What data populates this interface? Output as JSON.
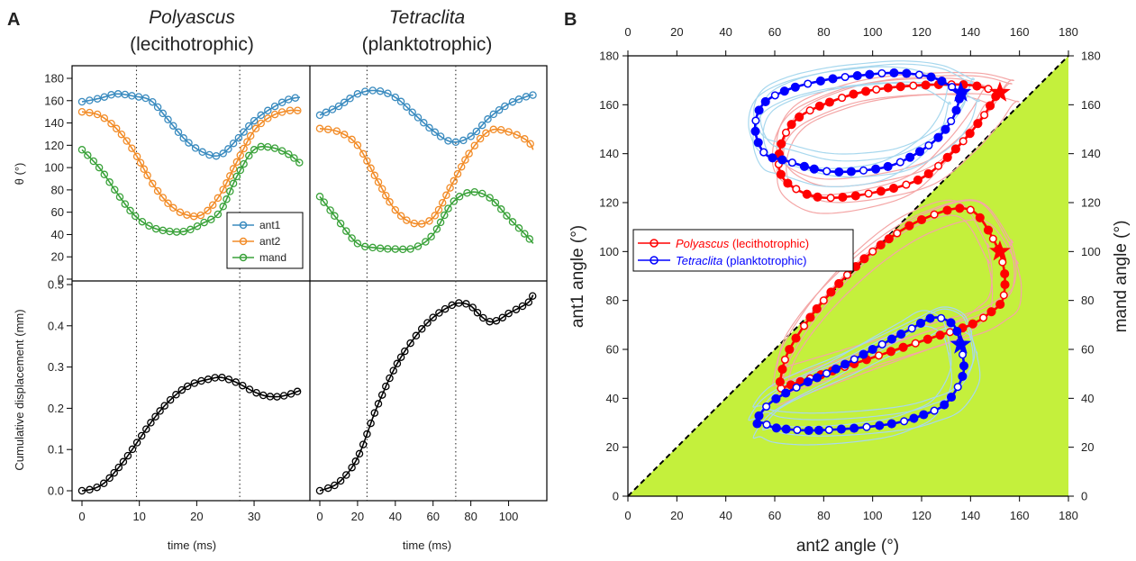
{
  "panel_A": {
    "letter": "A",
    "left_title": {
      "genus": "Polyascus",
      "type": "(lecithotrophic)"
    },
    "right_title": {
      "genus": "Tetraclita",
      "type": "(planktotrophic)"
    },
    "y_top_label": "θ (°)",
    "y_bottom_label": "Cumulative displacement (mm)",
    "x_label": "time (ms)",
    "legend": [
      "ant1",
      "ant2",
      "mand"
    ]
  },
  "panel_B": {
    "letter": "B",
    "x_label": "ant2 angle (°)",
    "y_label": "ant1 angle (°)",
    "y2_label": "mand angle (°)",
    "legend": [
      {
        "genus": "Polyascus",
        "type": " (lecithotrophic)",
        "color": "#ff0000"
      },
      {
        "genus": "Tetraclita",
        "type": " (planktotrophic)",
        "color": "#0000ff"
      }
    ]
  },
  "colors": {
    "ant1": "#3a8bbf",
    "ant2": "#f28c28",
    "mand": "#3aa23a",
    "polyascus": "#ff0000",
    "tetraclita": "#0000ff",
    "polyascus_light": "#f4a6a6",
    "tetraclita_light": "#a8d8ee",
    "fill": "#c4f03c"
  },
  "chart_data": [
    {
      "type": "line",
      "panel": "A-top-left",
      "xlim": [
        0,
        38
      ],
      "ylim": [
        0,
        180
      ],
      "xticks": [
        0,
        10,
        20,
        30
      ],
      "yticks": [
        0,
        20,
        40,
        60,
        80,
        100,
        120,
        140,
        160,
        180
      ],
      "vlines": [
        9.5,
        27.5
      ],
      "series": [
        {
          "name": "ant1",
          "x": [
            0,
            3,
            6,
            9,
            12,
            15,
            18,
            21,
            24,
            27,
            30,
            33,
            36,
            38
          ],
          "y": [
            159,
            162,
            166,
            164,
            160,
            143,
            125,
            114,
            111,
            125,
            142,
            153,
            161,
            163
          ]
        },
        {
          "name": "ant2",
          "x": [
            0,
            3,
            6,
            9,
            12,
            15,
            18,
            21,
            24,
            27,
            30,
            33,
            36,
            38
          ],
          "y": [
            150,
            147,
            135,
            115,
            88,
            68,
            58,
            58,
            75,
            105,
            133,
            146,
            151,
            151
          ]
        },
        {
          "name": "mand",
          "x": [
            0,
            3,
            6,
            9,
            12,
            15,
            18,
            21,
            24,
            27,
            30,
            33,
            36,
            38
          ],
          "y": [
            116,
            100,
            78,
            58,
            47,
            43,
            43,
            50,
            60,
            92,
            116,
            118,
            112,
            104
          ]
        }
      ]
    },
    {
      "type": "line",
      "panel": "A-top-right",
      "xlim": [
        0,
        115
      ],
      "ylim": [
        0,
        180
      ],
      "xticks": [
        0,
        20,
        40,
        60,
        80,
        100
      ],
      "vlines": [
        25,
        72
      ],
      "series": [
        {
          "name": "ant1",
          "x": [
            0,
            10,
            20,
            30,
            40,
            50,
            60,
            70,
            80,
            90,
            100,
            110,
            113
          ],
          "y": [
            147,
            155,
            166,
            169,
            163,
            148,
            133,
            123,
            128,
            145,
            157,
            164,
            165
          ]
        },
        {
          "name": "ant2",
          "x": [
            0,
            10,
            20,
            30,
            40,
            50,
            60,
            70,
            80,
            90,
            100,
            110,
            113
          ],
          "y": [
            135,
            132,
            120,
            90,
            62,
            50,
            55,
            85,
            115,
            133,
            132,
            124,
            116
          ]
        },
        {
          "name": "mand",
          "x": [
            0,
            10,
            20,
            30,
            40,
            50,
            60,
            70,
            80,
            90,
            100,
            110,
            113
          ],
          "y": [
            74,
            52,
            32,
            28,
            27,
            28,
            40,
            68,
            78,
            73,
            55,
            38,
            32
          ]
        }
      ]
    },
    {
      "type": "line",
      "panel": "A-bottom-left",
      "xlim": [
        0,
        38
      ],
      "ylim": [
        0,
        0.5
      ],
      "yticks": [
        0.0,
        0.1,
        0.2,
        0.3,
        0.4,
        0.5
      ],
      "vlines": [
        9.5,
        27.5
      ],
      "series": [
        {
          "name": "displacement",
          "x": [
            0,
            2,
            4,
            6,
            8,
            10,
            12,
            14,
            16,
            18,
            20,
            22,
            24,
            26,
            28,
            30,
            32,
            34,
            36,
            38
          ],
          "y": [
            0.0,
            0.005,
            0.02,
            0.05,
            0.085,
            0.125,
            0.165,
            0.2,
            0.228,
            0.25,
            0.263,
            0.27,
            0.275,
            0.268,
            0.255,
            0.24,
            0.23,
            0.228,
            0.233,
            0.243
          ]
        }
      ]
    },
    {
      "type": "line",
      "panel": "A-bottom-right",
      "xlim": [
        0,
        115
      ],
      "ylim": [
        0,
        0.5
      ],
      "vlines": [
        25,
        72
      ],
      "series": [
        {
          "name": "displacement",
          "x": [
            0,
            10,
            20,
            30,
            40,
            50,
            60,
            70,
            75,
            80,
            85,
            90,
            95,
            100,
            110,
            113
          ],
          "y": [
            0.0,
            0.02,
            0.08,
            0.2,
            0.3,
            0.37,
            0.42,
            0.45,
            0.455,
            0.448,
            0.425,
            0.41,
            0.415,
            0.43,
            0.455,
            0.475
          ]
        }
      ]
    },
    {
      "type": "line",
      "panel": "B",
      "xlabel": "ant2 angle (°)",
      "ylabel": "ant1 angle (°)",
      "y2label": "mand angle (°)",
      "xlim": [
        0,
        180
      ],
      "ylim": [
        0,
        180
      ],
      "xticks": [
        0,
        20,
        40,
        60,
        80,
        100,
        120,
        140,
        160,
        180
      ],
      "yticks": [
        0,
        20,
        40,
        60,
        80,
        100,
        120,
        140,
        160,
        180
      ],
      "series": [
        {
          "name": "Polyascus (lecithotrophic)",
          "curve": "ant1",
          "x": [
            152,
            140,
            120,
            100,
            85,
            70,
            63,
            62,
            68,
            80,
            100,
            120,
            135,
            145,
            150,
            152
          ],
          "y": [
            165,
            168,
            168,
            166,
            162,
            155,
            145,
            133,
            126,
            122,
            124,
            130,
            143,
            155,
            163,
            165
          ]
        },
        {
          "name": "Tetraclita (planktotrophic)",
          "curve": "ant1",
          "x": [
            136,
            125,
            110,
            95,
            80,
            65,
            55,
            52,
            56,
            65,
            80,
            95,
            110,
            125,
            133,
            136
          ],
          "y": [
            165,
            171,
            173,
            172,
            170,
            166,
            160,
            150,
            140,
            137,
            133,
            133,
            136,
            145,
            155,
            165
          ]
        },
        {
          "name": "Polyascus (lecithotrophic)",
          "curve": "mand",
          "x": [
            152,
            154,
            153,
            148,
            140,
            125,
            110,
            95,
            80,
            68,
            62,
            62,
            66,
            80,
            100,
            120,
            140,
            152
          ],
          "y": [
            100,
            90,
            80,
            75,
            70,
            65,
            60,
            55,
            50,
            46,
            44,
            46,
            60,
            80,
            100,
            113,
            117,
            100
          ]
        },
        {
          "name": "Tetraclita (planktotrophic)",
          "curve": "mand",
          "x": [
            136,
            137,
            130,
            120,
            110,
            95,
            80,
            70,
            60,
            55,
            52,
            58,
            70,
            85,
            100,
            115,
            125,
            133,
            136
          ],
          "y": [
            62,
            50,
            38,
            33,
            30,
            28,
            27,
            27,
            28,
            30,
            30,
            38,
            45,
            52,
            60,
            68,
            73,
            70,
            62
          ]
        }
      ]
    }
  ]
}
